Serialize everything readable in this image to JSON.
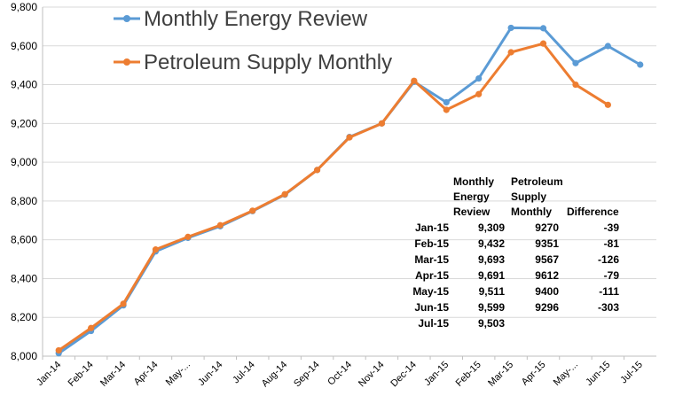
{
  "chart_data": {
    "type": "line",
    "categories": [
      "Jan-14",
      "Feb-14",
      "Mar-14",
      "Apr-14",
      "May-...",
      "Jun-14",
      "Jul-14",
      "Aug-14",
      "Sep-14",
      "Oct-14",
      "Nov-14",
      "Dec-14",
      "Jan-15",
      "Feb-15",
      "Mar-15",
      "Apr-15",
      "May-...",
      "Jun-15",
      "Jul-15"
    ],
    "ylim": [
      8000,
      9800
    ],
    "yticks": [
      "8,000",
      "8,200",
      "8,400",
      "8,600",
      "8,800",
      "9,000",
      "9,200",
      "9,400",
      "9,600",
      "9,800"
    ],
    "series": [
      {
        "name": "Monthly Energy Review",
        "color": "#5B9BD5",
        "values": [
          8015,
          8130,
          8262,
          8540,
          8610,
          8670,
          8748,
          8833,
          8960,
          9130,
          9200,
          9415,
          9309,
          9432,
          9693,
          9691,
          9511,
          9599,
          9503
        ]
      },
      {
        "name": "Petroleum Supply Monthly",
        "color": "#ED7D31",
        "values": [
          8030,
          8145,
          8270,
          8550,
          8615,
          8675,
          8750,
          8835,
          8960,
          9128,
          9200,
          9420,
          9270,
          9351,
          9567,
          9612,
          9400,
          9296,
          null
        ]
      }
    ],
    "grid": true,
    "legend_position": "top-left",
    "table": {
      "headers": [
        [
          "Monthly",
          "Energy",
          "Review"
        ],
        [
          "Petroleum",
          "Supply",
          "Monthly"
        ],
        [
          "Difference"
        ]
      ],
      "rows": [
        {
          "month": "Jan-15",
          "mer": "9,309",
          "psm": "9270",
          "diff": "-39"
        },
        {
          "month": "Feb-15",
          "mer": "9,432",
          "psm": "9351",
          "diff": "-81"
        },
        {
          "month": "Mar-15",
          "mer": "9,693",
          "psm": "9567",
          "diff": "-126"
        },
        {
          "month": "Apr-15",
          "mer": "9,691",
          "psm": "9612",
          "diff": "-79"
        },
        {
          "month": "May-15",
          "mer": "9,511",
          "psm": "9400",
          "diff": "-111"
        },
        {
          "month": "Jun-15",
          "mer": "9,599",
          "psm": "9296",
          "diff": "-303"
        },
        {
          "month": "Jul-15",
          "mer": "9,503",
          "psm": "",
          "diff": ""
        }
      ]
    }
  }
}
